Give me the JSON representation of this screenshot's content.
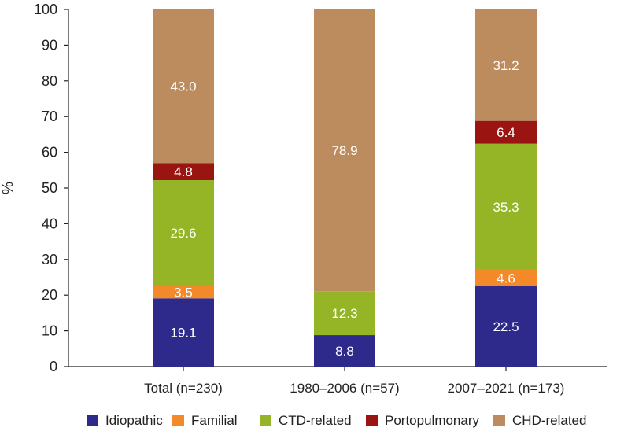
{
  "chart_data": {
    "type": "bar",
    "stacked": true,
    "title": "",
    "xlabel": "",
    "ylabel": "%",
    "ylim": [
      0,
      100
    ],
    "yticks": [
      0,
      10,
      20,
      30,
      40,
      50,
      60,
      70,
      80,
      90,
      100
    ],
    "grid": false,
    "legend_position": "bottom",
    "categories": [
      "Total (n=230)",
      "1980–2006 (n=57)",
      "2007–2021 (n=173)"
    ],
    "series": [
      {
        "name": "Idiopathic",
        "color": "#2e2a8c",
        "values": [
          19.1,
          8.8,
          22.5
        ],
        "labels": [
          "19.1",
          "8.8",
          "22.5"
        ]
      },
      {
        "name": "Familial",
        "color": "#f4892a",
        "values": [
          3.5,
          0,
          4.6
        ],
        "labels": [
          "3.5",
          "",
          "4.6"
        ]
      },
      {
        "name": "CTD-related",
        "color": "#95b526",
        "values": [
          29.6,
          12.3,
          35.3
        ],
        "labels": [
          "29.6",
          "12.3",
          "35.3"
        ]
      },
      {
        "name": "Portopulmonary",
        "color": "#9a1512",
        "values": [
          4.8,
          0,
          6.4
        ],
        "labels": [
          "4.8",
          "",
          "6.4"
        ]
      },
      {
        "name": "CHD-related",
        "color": "#bd8c5e",
        "values": [
          43.0,
          78.9,
          31.2
        ],
        "labels": [
          "43.0",
          "78.9",
          "31.2"
        ]
      }
    ]
  }
}
